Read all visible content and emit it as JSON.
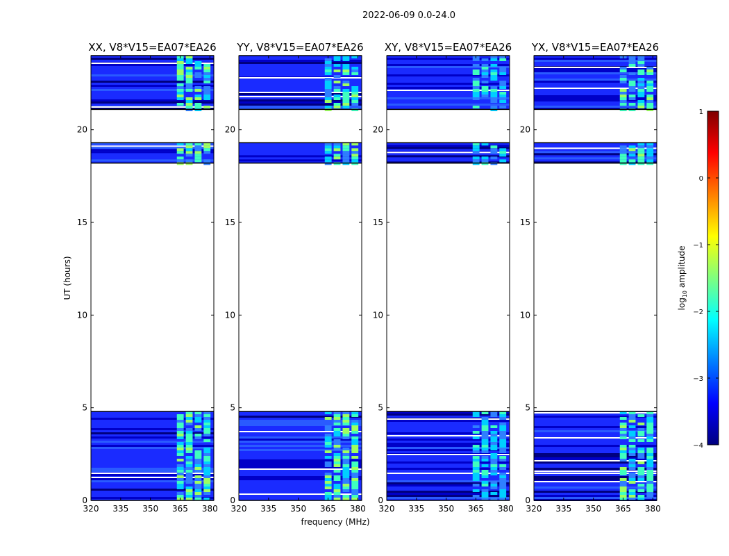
{
  "figure": {
    "suptitle": "2022-06-09 0.0-24.0",
    "xlabel": "frequency (MHz)",
    "ylabel": "UT (hours)"
  },
  "chart_data": {
    "type": "heatmap",
    "title": "2022-06-09 0.0-24.0",
    "xlabel": "frequency (MHz)",
    "ylabel": "UT (hours)",
    "xlim": [
      320,
      382
    ],
    "ylim": [
      0,
      24
    ],
    "xticks": [
      320,
      335,
      350,
      365,
      380
    ],
    "yticks": [
      0,
      5,
      10,
      15,
      20
    ],
    "data_time_blocks_hours": [
      [
        0.0,
        4.8
      ],
      [
        18.2,
        19.3
      ],
      [
        21.1,
        24.0
      ]
    ],
    "bright_band_mhz": [
      363,
      381
    ],
    "panels": [
      {
        "title": "XX, V8*V15=EA07*EA26",
        "strength": 1.0
      },
      {
        "title": "YY, V8*V15=EA07*EA26",
        "strength": 1.0
      },
      {
        "title": "XY, V8*V15=EA07*EA26",
        "strength": 0.7
      },
      {
        "title": "YX, V8*V15=EA07*EA26",
        "strength": 0.9
      }
    ],
    "colorbar": {
      "label": "log10 amplitude",
      "label_main": "log",
      "label_sub": "10",
      "label_rest": " amplitude",
      "range": [
        -4,
        1
      ],
      "ticks": [
        1,
        0,
        -1,
        -2,
        -3,
        -4
      ],
      "tick_labels": [
        "1",
        "0",
        "−1",
        "−2",
        "−3",
        "−4"
      ],
      "colormap": "jet",
      "colors": [
        "#00007f",
        "#0000ff",
        "#007fff",
        "#00ffff",
        "#7fff7f",
        "#ffff00",
        "#ff7f00",
        "#ff0000",
        "#7f0000"
      ]
    }
  }
}
